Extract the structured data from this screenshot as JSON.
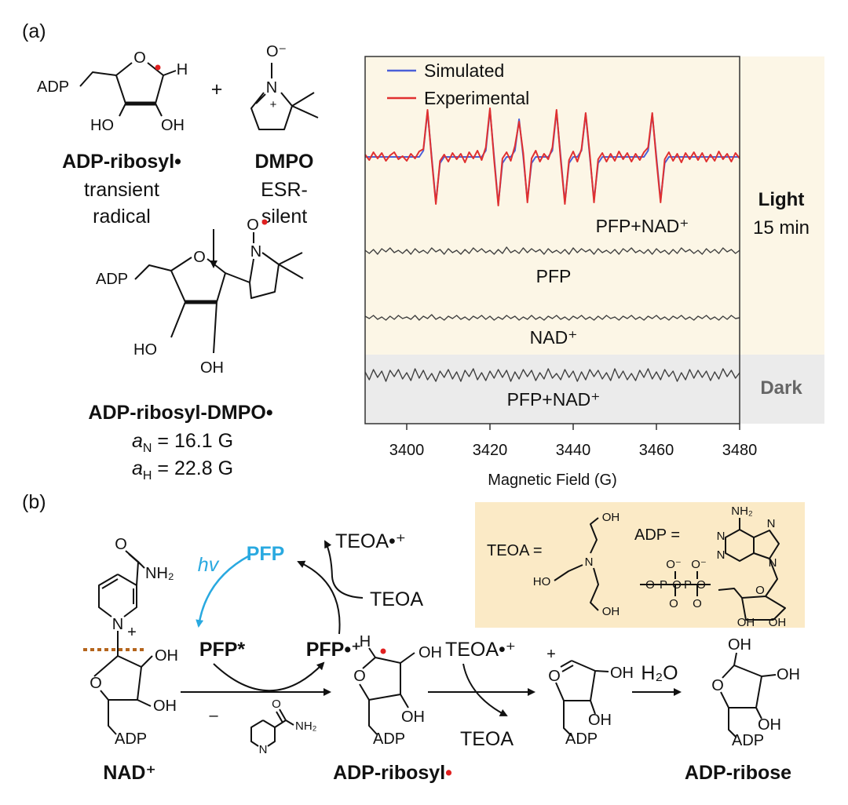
{
  "panel_a": {
    "label": "(a)",
    "ribosyl": {
      "atoms": [
        "ADP",
        "O",
        "H",
        "HO",
        "OH"
      ],
      "name": "ADP-ribosyl•",
      "desc": [
        "transient",
        "radical"
      ]
    },
    "plus": "+",
    "dmpo": {
      "atoms": [
        "O⁻",
        "N",
        "+"
      ],
      "name": "DMPO",
      "desc": [
        "ESR-",
        "silent"
      ]
    },
    "adduct": {
      "atoms": [
        "ADP",
        "O",
        "N",
        "O",
        "HO",
        "OH"
      ],
      "name": "ADP-ribosyl-DMPO•"
    },
    "hfc": [
      {
        "symbol": "a",
        "sub": "N",
        "text": " = 16.1 G"
      },
      {
        "symbol": "a",
        "sub": "H",
        "text": " = 22.8 G"
      }
    ]
  },
  "chart_data": {
    "type": "line",
    "xlabel": "Magnetic Field (G)",
    "xlim": [
      3390,
      3480
    ],
    "xticks": [
      3400,
      3420,
      3440,
      3460,
      3480
    ],
    "x": [
      3390,
      3391,
      3392,
      3393,
      3394,
      3395,
      3396,
      3397,
      3398,
      3399,
      3400,
      3401,
      3402,
      3403,
      3404,
      3405,
      3406,
      3407,
      3408,
      3409,
      3410,
      3411,
      3412,
      3413,
      3414,
      3415,
      3416,
      3417,
      3418,
      3419,
      3420,
      3421,
      3422,
      3423,
      3424,
      3425,
      3426,
      3427,
      3428,
      3429,
      3430,
      3431,
      3432,
      3433,
      3434,
      3435,
      3436,
      3437,
      3438,
      3439,
      3440,
      3441,
      3442,
      3443,
      3444,
      3445,
      3446,
      3447,
      3448,
      3449,
      3450,
      3451,
      3452,
      3453,
      3454,
      3455,
      3456,
      3457,
      3458,
      3459,
      3460,
      3461,
      3462,
      3463,
      3464,
      3465,
      3466,
      3467,
      3468,
      3469,
      3470,
      3471,
      3472,
      3473,
      3474,
      3475,
      3476,
      3477,
      3478,
      3479,
      3480
    ],
    "series": [
      {
        "name": "Simulated",
        "color": "#4a5fd8",
        "legend": true,
        "values": [
          0,
          0,
          0,
          0,
          0,
          0,
          0,
          0,
          0,
          0,
          0,
          0,
          0,
          0,
          8,
          58,
          0,
          -58,
          -8,
          0,
          0,
          0,
          0,
          0,
          0,
          0,
          0,
          0,
          0,
          8,
          60,
          0,
          -60,
          -8,
          0,
          0,
          8,
          48,
          0,
          -55,
          -8,
          0,
          0,
          0,
          0,
          8,
          58,
          0,
          -58,
          -8,
          0,
          0,
          8,
          55,
          0,
          -55,
          -8,
          0,
          0,
          0,
          0,
          0,
          0,
          0,
          0,
          0,
          0,
          0,
          8,
          55,
          0,
          -55,
          -8,
          0,
          0,
          0,
          0,
          0,
          0,
          0,
          0,
          0,
          0,
          0,
          0,
          0,
          0,
          0,
          0,
          0,
          0
        ]
      },
      {
        "name": "Experimental",
        "color": "#e03030",
        "legend": true,
        "values": [
          3,
          -4,
          6,
          -2,
          5,
          -5,
          2,
          6,
          -3,
          1,
          -5,
          4,
          -2,
          7,
          10,
          60,
          -3,
          -60,
          -5,
          3,
          -6,
          5,
          -3,
          4,
          -7,
          6,
          -2,
          8,
          -4,
          12,
          62,
          -4,
          -62,
          -2,
          6,
          -5,
          14,
          45,
          5,
          -58,
          -2,
          8,
          -6,
          4,
          -3,
          12,
          60,
          -4,
          -60,
          -4,
          7,
          -6,
          10,
          56,
          3,
          -58,
          -3,
          5,
          -6,
          4,
          -5,
          7,
          -3,
          5,
          -6,
          4,
          -4,
          6,
          12,
          56,
          -4,
          -58,
          -3,
          6,
          -5,
          4,
          -7,
          5,
          -3,
          6,
          -4,
          5,
          -6,
          3,
          -5,
          7,
          -3,
          4,
          -6,
          5,
          -2
        ]
      },
      {
        "name": "PFP",
        "color": "#404040",
        "legend": false,
        "values": [
          1,
          -3,
          2,
          -4,
          3,
          -1,
          4,
          -2,
          1,
          -3,
          2,
          -4,
          3,
          -2,
          1,
          -3,
          4,
          -1,
          2,
          -4,
          3,
          -2,
          1,
          -4,
          2,
          -3,
          4,
          -1,
          3,
          -2,
          1,
          -4,
          2,
          -3,
          5,
          -2,
          1,
          -3,
          4,
          -2,
          3,
          -1,
          2,
          -4,
          3,
          -2,
          1,
          -3,
          2,
          -4,
          4,
          -2,
          3,
          -1,
          2,
          -4,
          3,
          -2,
          1,
          -3,
          2,
          -4,
          3,
          -1,
          4,
          -2,
          1,
          -3,
          2,
          -4,
          3,
          -2,
          1,
          -4,
          2,
          -3,
          4,
          -1,
          2,
          -3,
          1,
          -4,
          3,
          -2,
          2,
          -3,
          4,
          -1,
          2,
          -3,
          1
        ]
      },
      {
        "name": "NAD⁺",
        "color": "#404040",
        "legend": false,
        "values": [
          2,
          -1,
          3,
          -2,
          1,
          -3,
          2,
          -2,
          3,
          -1,
          1,
          -2,
          3,
          -3,
          2,
          -1,
          4,
          -2,
          1,
          -3,
          2,
          -1,
          3,
          -2,
          1,
          -3,
          2,
          -1,
          3,
          -2,
          2,
          -3,
          1,
          -2,
          3,
          -1,
          2,
          -3,
          1,
          -2,
          3,
          -2,
          1,
          -3,
          2,
          -1,
          3,
          -2,
          1,
          -3,
          2,
          -1,
          3,
          -2,
          1,
          -3,
          2,
          -2,
          3,
          -1,
          1,
          -3,
          2,
          -1,
          3,
          -2,
          1,
          -3,
          2,
          -1,
          3,
          -2,
          1,
          -3,
          2,
          -1,
          3,
          -2,
          1,
          -3,
          2,
          -1,
          3,
          -2,
          1,
          -3,
          2,
          -2,
          3,
          -1,
          0
        ]
      },
      {
        "name": "PFP+NAD⁺",
        "color": "#404040",
        "legend": false,
        "values": [
          4,
          -6,
          7,
          -3,
          5,
          -8,
          6,
          -2,
          7,
          -5,
          3,
          -7,
          8,
          -4,
          6,
          -6,
          2,
          -8,
          5,
          -3,
          7,
          -5,
          4,
          -8,
          6,
          -2,
          8,
          -6,
          3,
          -7,
          5,
          -4,
          7,
          -3,
          6,
          -8,
          4,
          -5,
          7,
          -2,
          6,
          -7,
          3,
          -5,
          8,
          -4,
          2,
          -6,
          7,
          -3,
          5,
          -8,
          4,
          -6,
          7,
          -2,
          6,
          -5,
          3,
          -7,
          8,
          -4,
          5,
          -6,
          2,
          -7,
          6,
          -3,
          8,
          -5,
          4,
          -6,
          7,
          -2,
          5,
          -8,
          3,
          -6,
          7,
          -4,
          6,
          -3,
          5,
          -7,
          4,
          -5,
          8,
          -2,
          6,
          -4,
          3
        ]
      }
    ],
    "annotations": [
      "PFP+NAD⁺",
      "Light",
      "15 min",
      "Dark"
    ]
  },
  "panel_b": {
    "label": "(b)",
    "cycle": {
      "pfp": "PFP",
      "hv": "hv",
      "excited": "PFP*",
      "cation": "PFP•⁺",
      "teoa_ox": "TEOA•⁺",
      "teoa": "TEOA"
    },
    "nad": {
      "atoms": [
        "O",
        "NH₂",
        "N",
        "+",
        "O",
        "OH",
        "OH",
        "ADP"
      ],
      "name": "NAD⁺"
    },
    "byproduct": {
      "minus": "–",
      "atoms": [
        "O",
        "NH₂",
        "N"
      ]
    },
    "radical": {
      "atoms": [
        "H",
        "O",
        "OH",
        "OH",
        "ADP"
      ],
      "name": "ADP-ribosyl",
      "dot": "•"
    },
    "step2": {
      "oxidant": "TEOA•⁺",
      "reduced": "TEOA"
    },
    "oxocarbenium": {
      "atoms": [
        "O",
        "+",
        "OH",
        "OH",
        "ADP"
      ]
    },
    "step3": {
      "reagent": "H₂O"
    },
    "ribose": {
      "atoms": [
        "OH",
        "O",
        "OH",
        "OH",
        "ADP"
      ],
      "name": "ADP-ribose"
    },
    "inset": {
      "teoa_label": "TEOA =",
      "teoa_atoms": [
        "OH",
        "N",
        "HO",
        "OH"
      ],
      "adp_label": "ADP =",
      "adp_atoms": [
        "NH₂",
        "N",
        "N",
        "N",
        "N",
        "O⁻",
        "O⁻",
        "O",
        "P",
        "O",
        "P",
        "O",
        "O",
        "O",
        "O",
        "OH",
        "OH"
      ]
    }
  }
}
